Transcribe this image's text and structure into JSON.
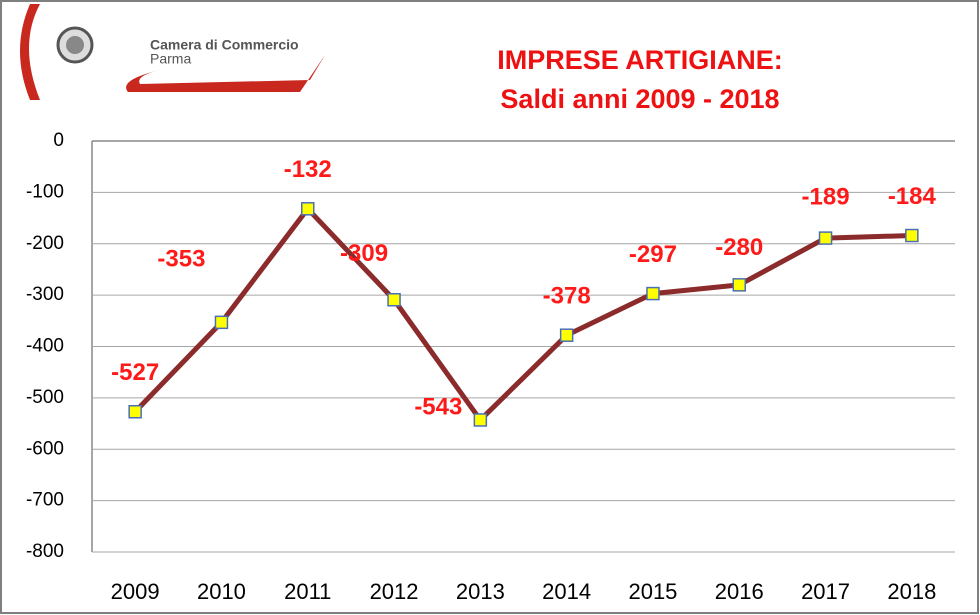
{
  "logo": {
    "line1": "Camera di Commercio",
    "line2": "Parma"
  },
  "chart_data": {
    "type": "line",
    "title": [
      "IMPRESE ARTIGIANE:",
      "Saldi  anni  2009 - 2018"
    ],
    "categories": [
      "2009",
      "2010",
      "2011",
      "2012",
      "2013",
      "2014",
      "2015",
      "2016",
      "2017",
      "2018"
    ],
    "series": [
      {
        "name": "Saldi",
        "color": "#8b2b2b",
        "marker_color": "#ffff00",
        "values": [
          -527,
          -353,
          -132,
          -309,
          -543,
          -378,
          -297,
          -280,
          -189,
          -184
        ]
      }
    ],
    "ylim": [
      -800,
      0
    ],
    "yticks": [
      0,
      -100,
      -200,
      -300,
      -400,
      -500,
      -600,
      -700,
      -800
    ],
    "grid": true
  }
}
